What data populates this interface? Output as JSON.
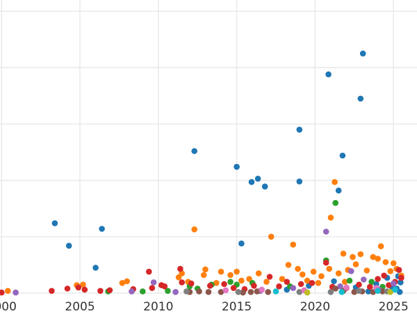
{
  "chart_data": {
    "type": "scatter",
    "xlabel": "",
    "ylabel": "",
    "title": "",
    "xlim": [
      1999.9,
      2026.5
    ],
    "ylim": [
      0,
      52
    ],
    "grid": true,
    "legend": "none",
    "x_ticks": [
      {
        "value": 2000,
        "label": "2000"
      },
      {
        "value": 2005,
        "label": "2005"
      },
      {
        "value": 2010,
        "label": "2010"
      },
      {
        "value": 2015,
        "label": "2015"
      },
      {
        "value": 2020,
        "label": "2020"
      },
      {
        "value": 2025,
        "label": "2025"
      }
    ],
    "y_gridlines": [
      0,
      10,
      20,
      30,
      40,
      50
    ],
    "colors": {
      "blue": "#1f77b4",
      "orange": "#ff7f0e",
      "green": "#2ca02c",
      "red": "#d62728",
      "purple": "#9467bd",
      "brown": "#8c564b",
      "pink": "#e377c2",
      "gray": "#7f7f7f",
      "olive": "#bcbd22",
      "cyan": "#17becf"
    },
    "series": [
      {
        "color": "#1f77b4",
        "points": [
          [
            2003.4,
            12.4
          ],
          [
            2004.3,
            8.4
          ],
          [
            2006.0,
            4.5
          ],
          [
            2006.4,
            11.4
          ],
          [
            2012.3,
            25.2
          ],
          [
            2015.0,
            22.4
          ],
          [
            2015.3,
            8.8
          ],
          [
            2015.95,
            19.7
          ],
          [
            2016.35,
            20.3
          ],
          [
            2016.8,
            18.9
          ],
          [
            2019.0,
            29.0
          ],
          [
            2019.0,
            19.8
          ],
          [
            2020.85,
            38.8
          ],
          [
            2021.5,
            18.2
          ],
          [
            2021.75,
            24.4
          ],
          [
            2022.9,
            34.5
          ],
          [
            2023.05,
            42.5
          ],
          [
            2018.2,
            0.6
          ],
          [
            2019.6,
            1.3
          ],
          [
            2021.2,
            2.1
          ],
          [
            2021.8,
            0.4
          ],
          [
            2022.6,
            1.0
          ],
          [
            2023.4,
            0.3
          ],
          [
            2023.9,
            1.6
          ],
          [
            2024.2,
            0.5
          ],
          [
            2024.6,
            2.7
          ],
          [
            2024.9,
            1.1
          ],
          [
            2025.2,
            0.8
          ],
          [
            2025.3,
            3.0
          ],
          [
            2025.4,
            0.2
          ],
          [
            2025.45,
            1.9
          ]
        ]
      },
      {
        "color": "#ff7f0e",
        "points": [
          [
            2000.4,
            0.4
          ],
          [
            2004.8,
            1.4
          ],
          [
            2005.2,
            1.5
          ],
          [
            2007.7,
            1.8
          ],
          [
            2008.0,
            2.1
          ],
          [
            2011.3,
            2.8
          ],
          [
            2011.5,
            3.5
          ],
          [
            2011.9,
            2.0
          ],
          [
            2012.3,
            11.3
          ],
          [
            2012.9,
            3.2
          ],
          [
            2013.0,
            4.2
          ],
          [
            2013.7,
            1.8
          ],
          [
            2014.0,
            3.8
          ],
          [
            2014.6,
            3.2
          ],
          [
            2015.0,
            3.8
          ],
          [
            2015.3,
            2.2
          ],
          [
            2015.8,
            2.5
          ],
          [
            2016.4,
            3.5
          ],
          [
            2016.9,
            2.0
          ],
          [
            2017.2,
            10.0
          ],
          [
            2017.9,
            2.5
          ],
          [
            2018.3,
            5.0
          ],
          [
            2018.6,
            8.6
          ],
          [
            2018.9,
            4.3
          ],
          [
            2019.2,
            3.3
          ],
          [
            2019.9,
            3.8
          ],
          [
            2020.4,
            3.0
          ],
          [
            2020.9,
            4.3
          ],
          [
            2021.0,
            13.4
          ],
          [
            2021.25,
            19.7
          ],
          [
            2021.5,
            3.5
          ],
          [
            2021.8,
            7.0
          ],
          [
            2022.1,
            4.1
          ],
          [
            2022.4,
            6.4
          ],
          [
            2022.6,
            5.1
          ],
          [
            2022.9,
            6.9
          ],
          [
            2023.3,
            4.0
          ],
          [
            2023.7,
            6.4
          ],
          [
            2024.0,
            6.1
          ],
          [
            2024.2,
            8.3
          ],
          [
            2024.5,
            5.5
          ],
          [
            2024.8,
            3.9
          ],
          [
            2025.0,
            5.3
          ],
          [
            2025.2,
            4.3
          ],
          [
            2025.5,
            3.1
          ],
          [
            2020.2,
            1.8
          ],
          [
            2021.9,
            2.0
          ],
          [
            2019.5,
            2.2
          ]
        ]
      },
      {
        "color": "#2ca02c",
        "points": [
          [
            2006.8,
            0.3
          ],
          [
            2009.0,
            0.3
          ],
          [
            2010.6,
            0.4
          ],
          [
            2012.0,
            1.2
          ],
          [
            2012.5,
            0.8
          ],
          [
            2013.4,
            1.5
          ],
          [
            2014.6,
            2.0
          ],
          [
            2015.0,
            1.5
          ],
          [
            2016.0,
            1.8
          ],
          [
            2018.4,
            1.2
          ],
          [
            2020.7,
            5.8
          ],
          [
            2021.3,
            16.0
          ],
          [
            2022.2,
            2.2
          ],
          [
            2023.6,
            2.0
          ],
          [
            2024.3,
            1.1
          ]
        ]
      },
      {
        "color": "#d62728",
        "points": [
          [
            2000.0,
            0.1
          ],
          [
            2003.2,
            0.4
          ],
          [
            2004.2,
            0.8
          ],
          [
            2004.9,
            1.0
          ],
          [
            2005.3,
            0.6
          ],
          [
            2006.3,
            0.4
          ],
          [
            2006.9,
            0.5
          ],
          [
            2008.4,
            0.7
          ],
          [
            2009.4,
            3.8
          ],
          [
            2009.6,
            0.9
          ],
          [
            2010.2,
            1.4
          ],
          [
            2010.4,
            1.2
          ],
          [
            2011.4,
            4.3
          ],
          [
            2011.5,
            1.9
          ],
          [
            2012.1,
            1.7
          ],
          [
            2013.3,
            1.3
          ],
          [
            2014.2,
            1.6
          ],
          [
            2014.8,
            0.9
          ],
          [
            2015.5,
            0.7
          ],
          [
            2016.1,
            1.3
          ],
          [
            2017.1,
            2.9
          ],
          [
            2017.7,
            1.2
          ],
          [
            2018.2,
            2.0
          ],
          [
            2019.1,
            1.6
          ],
          [
            2019.8,
            1.8
          ],
          [
            2020.7,
            5.4
          ],
          [
            2021.1,
            1.1
          ],
          [
            2022.0,
            0.9
          ],
          [
            2022.8,
            1.5
          ],
          [
            2023.5,
            1.1
          ],
          [
            2024.0,
            2.5
          ],
          [
            2024.4,
            3.1
          ],
          [
            2024.7,
            1.4
          ],
          [
            2025.1,
            2.0
          ],
          [
            2025.35,
            4.1
          ],
          [
            2025.5,
            2.7
          ]
        ]
      },
      {
        "color": "#9467bd",
        "points": [
          [
            2000.9,
            0.1
          ],
          [
            2008.3,
            0.3
          ],
          [
            2009.7,
            1.9
          ],
          [
            2011.1,
            0.2
          ],
          [
            2016.5,
            0.4
          ],
          [
            2018.6,
            0.9
          ],
          [
            2020.7,
            10.9
          ],
          [
            2021.6,
            1.2
          ],
          [
            2022.3,
            3.9
          ],
          [
            2023.1,
            2.4
          ],
          [
            2024.1,
            0.6
          ],
          [
            2025.0,
            1.7
          ]
        ]
      },
      {
        "color": "#8c564b",
        "points": [
          [
            2012.0,
            0.2
          ],
          [
            2012.6,
            0.3
          ],
          [
            2013.2,
            0.2
          ],
          [
            2014.0,
            0.2
          ],
          [
            2015.4,
            0.1
          ],
          [
            2015.9,
            0.2
          ],
          [
            2016.3,
            0.3
          ],
          [
            2017.0,
            0.2
          ],
          [
            2021.3,
            0.8
          ],
          [
            2021.8,
            0.4
          ],
          [
            2022.5,
            0.2
          ],
          [
            2023.0,
            0.3
          ],
          [
            2023.7,
            0.2
          ],
          [
            2024.3,
            0.3
          ]
        ]
      },
      {
        "color": "#7f7f7f",
        "points": [
          [
            2011.8,
            0.3
          ],
          [
            2015.1,
            0.2
          ],
          [
            2019.0,
            0.2
          ],
          [
            2021.0,
            0.2
          ],
          [
            2022.8,
            0.4
          ],
          [
            2024.6,
            0.3
          ]
        ]
      },
      {
        "color": "#e377c2",
        "points": [
          [
            2014.3,
            0.5
          ],
          [
            2016.6,
            0.6
          ],
          [
            2019.3,
            0.5
          ],
          [
            2022.0,
            1.0
          ],
          [
            2023.9,
            0.9
          ]
        ]
      },
      {
        "color": "#bcbd22",
        "points": [
          [
            2019.5,
            0.1
          ],
          [
            2024.8,
            0.2
          ]
        ]
      },
      {
        "color": "#17becf",
        "points": [
          [
            2017.5,
            0.3
          ],
          [
            2021.7,
            0.2
          ],
          [
            2024.0,
            0.4
          ],
          [
            2025.1,
            0.6
          ]
        ]
      }
    ]
  }
}
